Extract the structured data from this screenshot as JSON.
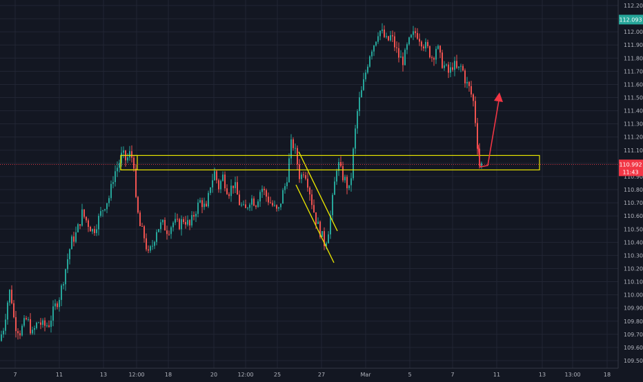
{
  "chart_data": {
    "type": "candlestick",
    "instrument_current_price": "110.992",
    "countdown": "11:43",
    "last_bar_high_label": "112.093",
    "ylim": [
      109.45,
      112.23
    ],
    "y_ticks": [
      "112.200",
      "112.100",
      "112.000",
      "111.900",
      "111.800",
      "111.700",
      "111.600",
      "111.500",
      "111.400",
      "111.300",
      "111.200",
      "111.100",
      "111.000",
      "110.900",
      "110.800",
      "110.700",
      "110.600",
      "110.500",
      "110.400",
      "110.300",
      "110.200",
      "110.100",
      "110.000",
      "109.900",
      "109.800",
      "109.700",
      "109.600",
      "109.500"
    ],
    "x_tick_labels": [
      "7",
      "11",
      "13",
      "12:00",
      "18",
      "20",
      "12:00",
      "25",
      "27",
      "Mar",
      "5",
      "7",
      "11",
      "13",
      "13:00",
      "18"
    ],
    "grid": true,
    "price_path": [
      {
        "t": 0,
        "p": 109.65
      },
      {
        "t": 6,
        "p": 109.75
      },
      {
        "t": 12,
        "p": 109.95
      },
      {
        "t": 16,
        "p": 110.05
      },
      {
        "t": 22,
        "p": 109.78
      },
      {
        "t": 30,
        "p": 109.72
      },
      {
        "t": 40,
        "p": 109.82
      },
      {
        "t": 48,
        "p": 109.7
      },
      {
        "t": 56,
        "p": 109.8
      },
      {
        "t": 64,
        "p": 109.76
      },
      {
        "t": 72,
        "p": 109.78
      },
      {
        "t": 80,
        "p": 109.9
      },
      {
        "t": 88,
        "p": 110.0
      },
      {
        "t": 96,
        "p": 110.2
      },
      {
        "t": 104,
        "p": 110.4
      },
      {
        "t": 112,
        "p": 110.47
      },
      {
        "t": 120,
        "p": 110.62
      },
      {
        "t": 128,
        "p": 110.55
      },
      {
        "t": 136,
        "p": 110.48
      },
      {
        "t": 144,
        "p": 110.58
      },
      {
        "t": 152,
        "p": 110.68
      },
      {
        "t": 160,
        "p": 110.75
      },
      {
        "t": 166,
        "p": 110.92
      },
      {
        "t": 172,
        "p": 110.98
      },
      {
        "t": 178,
        "p": 111.07
      },
      {
        "t": 184,
        "p": 111.02
      },
      {
        "t": 190,
        "p": 111.08
      },
      {
        "t": 195,
        "p": 111.0
      },
      {
        "t": 198,
        "p": 110.7
      },
      {
        "t": 204,
        "p": 110.52
      },
      {
        "t": 210,
        "p": 110.44
      },
      {
        "t": 216,
        "p": 110.3
      },
      {
        "t": 222,
        "p": 110.38
      },
      {
        "t": 228,
        "p": 110.5
      },
      {
        "t": 236,
        "p": 110.54
      },
      {
        "t": 244,
        "p": 110.49
      },
      {
        "t": 252,
        "p": 110.55
      },
      {
        "t": 260,
        "p": 110.53
      },
      {
        "t": 268,
        "p": 110.58
      },
      {
        "t": 276,
        "p": 110.52
      },
      {
        "t": 284,
        "p": 110.64
      },
      {
        "t": 292,
        "p": 110.72
      },
      {
        "t": 300,
        "p": 110.64
      },
      {
        "t": 306,
        "p": 110.84
      },
      {
        "t": 312,
        "p": 110.93
      },
      {
        "t": 318,
        "p": 110.82
      },
      {
        "t": 324,
        "p": 110.9
      },
      {
        "t": 332,
        "p": 110.78
      },
      {
        "t": 340,
        "p": 110.85
      },
      {
        "t": 348,
        "p": 110.7
      },
      {
        "t": 356,
        "p": 110.63
      },
      {
        "t": 364,
        "p": 110.74
      },
      {
        "t": 372,
        "p": 110.7
      },
      {
        "t": 380,
        "p": 110.82
      },
      {
        "t": 388,
        "p": 110.74
      },
      {
        "t": 396,
        "p": 110.68
      },
      {
        "t": 404,
        "p": 110.62
      },
      {
        "t": 410,
        "p": 110.76
      },
      {
        "t": 416,
        "p": 110.86
      },
      {
        "t": 420,
        "p": 111.02
      },
      {
        "t": 424,
        "p": 111.18
      },
      {
        "t": 430,
        "p": 111.06
      },
      {
        "t": 436,
        "p": 110.88
      },
      {
        "t": 442,
        "p": 110.96
      },
      {
        "t": 448,
        "p": 110.84
      },
      {
        "t": 454,
        "p": 110.68
      },
      {
        "t": 460,
        "p": 110.55
      },
      {
        "t": 466,
        "p": 110.47
      },
      {
        "t": 472,
        "p": 110.38
      },
      {
        "t": 478,
        "p": 110.52
      },
      {
        "t": 484,
        "p": 110.76
      },
      {
        "t": 490,
        "p": 111.02
      },
      {
        "t": 496,
        "p": 110.92
      },
      {
        "t": 502,
        "p": 110.86
      },
      {
        "t": 508,
        "p": 110.78
      },
      {
        "t": 514,
        "p": 111.15
      },
      {
        "t": 520,
        "p": 111.44
      },
      {
        "t": 526,
        "p": 111.56
      },
      {
        "t": 532,
        "p": 111.72
      },
      {
        "t": 538,
        "p": 111.86
      },
      {
        "t": 544,
        "p": 111.92
      },
      {
        "t": 550,
        "p": 112.02
      },
      {
        "t": 556,
        "p": 111.98
      },
      {
        "t": 562,
        "p": 111.92
      },
      {
        "t": 568,
        "p": 111.97
      },
      {
        "t": 574,
        "p": 111.88
      },
      {
        "t": 580,
        "p": 111.8
      },
      {
        "t": 586,
        "p": 111.78
      },
      {
        "t": 592,
        "p": 111.9
      },
      {
        "t": 598,
        "p": 111.96
      },
      {
        "t": 604,
        "p": 112.0
      },
      {
        "t": 610,
        "p": 111.95
      },
      {
        "t": 616,
        "p": 111.9
      },
      {
        "t": 622,
        "p": 111.86
      },
      {
        "t": 628,
        "p": 111.8
      },
      {
        "t": 634,
        "p": 111.9
      },
      {
        "t": 640,
        "p": 111.78
      },
      {
        "t": 646,
        "p": 111.73
      },
      {
        "t": 652,
        "p": 111.68
      },
      {
        "t": 658,
        "p": 111.76
      },
      {
        "t": 664,
        "p": 111.7
      },
      {
        "t": 670,
        "p": 111.74
      },
      {
        "t": 676,
        "p": 111.62
      },
      {
        "t": 682,
        "p": 111.56
      },
      {
        "t": 688,
        "p": 111.45
      },
      {
        "t": 692,
        "p": 111.2
      },
      {
        "t": 696,
        "p": 110.99
      }
    ],
    "annotations": {
      "zone_line_color": "#e8e400",
      "arrow_color": "#f23645",
      "current_price_line_color": "#f23645",
      "up_candle_color": "#26a69a",
      "down_candle_color": "#ef5350",
      "price_label_up_color": "#26a69a"
    },
    "zones": [
      {
        "name": "resistance-zone-left",
        "top": 111.06,
        "bottom": 110.95,
        "t0": 175,
        "t1": 200
      },
      {
        "name": "support-zone-right",
        "top": 111.06,
        "bottom": 110.95,
        "t0": 175,
        "t1": 782
      }
    ]
  }
}
